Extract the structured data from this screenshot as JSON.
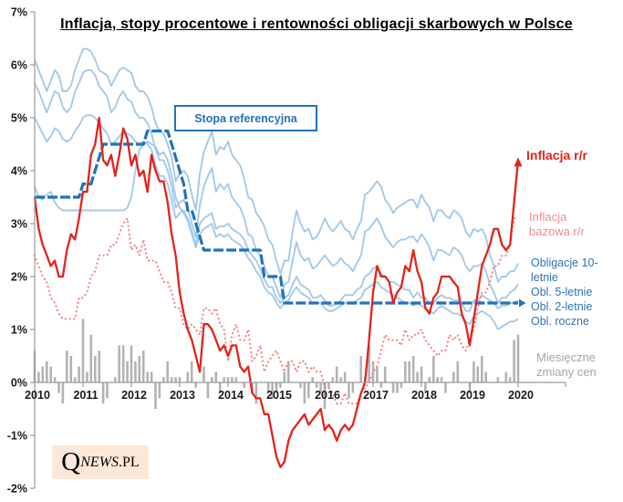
{
  "title": "Inflacja, stopy procentowe i rentowności obligacji skarbowych w Polsce",
  "annotations": {
    "reference_rate_box": "Stopa referencyjna",
    "inflation_label": "Inflacja r/r",
    "core_inflation_label_line1": "Inflacja",
    "core_inflation_label_line2": "bazowa r/r",
    "bond10_label_line1": "Obligacje 10-",
    "bond10_label_line2": "letnie",
    "bond5_label": "Obl. 5-letnie",
    "bond2_label": "Obl. 2-letnie",
    "bond1_label": "Obl. roczne",
    "bars_label_line1": "Miesięczne",
    "bars_label_line2": "zmiany cen"
  },
  "logo": {
    "q": "Q",
    "news": "NEWS",
    "pl": ".PL"
  },
  "colors": {
    "red": "#E2231A",
    "pink": "#F28C8C",
    "dark_blue": "#2272B9",
    "light_blue": "#A6C9E8",
    "blue_label": "#2E74B5",
    "gray_bar": "#B3B3B3",
    "gray_label": "#A6A6A6",
    "axis": "#9B9B9B",
    "tick_text": "#1A1A1A",
    "logo_bg": "#FCE8D9"
  },
  "chart_data": {
    "type": "line+bar",
    "frequency": "monthly",
    "x_start": "2010-01",
    "x_end": "2020-01",
    "ylim": [
      -2,
      7
    ],
    "grid": false,
    "y_tick_labels": [
      "7%",
      "6%",
      "5%",
      "4%",
      "3%",
      "2%",
      "1%",
      "0%",
      "-1%",
      "-2%"
    ],
    "y_tick_values": [
      7,
      6,
      5,
      4,
      3,
      2,
      1,
      0,
      -1,
      -2
    ],
    "x_tick_labels": [
      "2010",
      "2011",
      "2012",
      "2013",
      "2014",
      "2015",
      "2016",
      "2017",
      "2018",
      "2019",
      "2020"
    ],
    "series": {
      "monthly_price_change_bars": {
        "label": "Miesięczne zmiany cen",
        "type": "bar",
        "values": [
          0.6,
          0.2,
          0.3,
          0.4,
          0.3,
          0.1,
          -0.2,
          -0.4,
          0.6,
          0.5,
          0.1,
          0.3,
          1.2,
          0.2,
          0.9,
          0.5,
          0.6,
          -0.4,
          -0.3,
          0.0,
          0.1,
          0.7,
          0.7,
          0.4,
          0.7,
          0.4,
          0.5,
          0.6,
          0.2,
          0.2,
          -0.5,
          -0.3,
          0.1,
          0.4,
          0.1,
          0.1,
          0.1,
          0.0,
          0.2,
          0.4,
          -0.1,
          0.0,
          0.3,
          -0.3,
          0.1,
          0.2,
          -0.2,
          0.1,
          0.1,
          0.1,
          0.1,
          0.0,
          -0.1,
          0.0,
          -0.2,
          -0.4,
          0.0,
          0.0,
          -0.2,
          -0.3,
          -0.2,
          -0.1,
          0.2,
          0.4,
          0.0,
          0.0,
          -0.1,
          -0.4,
          -0.3,
          0.1,
          -0.1,
          -0.2,
          -0.5,
          -0.1,
          0.1,
          0.3,
          0.1,
          0.2,
          -0.3,
          -0.2,
          0.0,
          0.5,
          0.1,
          0.7,
          0.4,
          0.3,
          -0.1,
          0.3,
          0.0,
          -0.2,
          -0.2,
          -0.1,
          0.4,
          0.4,
          0.5,
          0.2,
          0.3,
          -0.2,
          0.1,
          0.5,
          0.1,
          0.1,
          -0.2,
          0.0,
          0.2,
          0.4,
          0.0,
          0.0,
          -0.2,
          0.4,
          0.3,
          0.5,
          0.2,
          0.0,
          0.0,
          0.1,
          0.0,
          0.2,
          0.1,
          0.8,
          0.9
        ]
      },
      "bond_1y": {
        "label": "Obl. roczne",
        "type": "line",
        "values": [
          3.7,
          3.5,
          3.45,
          3.55,
          3.6,
          3.4,
          3.3,
          3.25,
          3.25,
          3.25,
          3.25,
          3.25,
          3.25,
          3.25,
          3.25,
          3.25,
          3.25,
          3.25,
          3.25,
          3.25,
          3.25,
          3.25,
          3.25,
          3.3,
          3.5,
          4.0,
          4.4,
          4.5,
          4.55,
          4.5,
          4.45,
          4.3,
          4.35,
          4.2,
          3.9,
          3.5,
          3.3,
          3.2,
          3.05,
          2.8,
          2.55,
          2.8,
          2.9,
          2.95,
          3.0,
          2.75,
          2.8,
          2.75,
          2.8,
          2.7,
          2.65,
          2.6,
          2.5,
          2.35,
          2.25,
          2.1,
          2.0,
          1.8,
          1.7,
          1.65,
          1.5,
          1.4,
          1.5,
          1.55,
          1.7,
          1.8,
          1.7,
          1.65,
          1.6,
          1.5,
          1.5,
          1.5,
          1.4,
          1.35,
          1.35,
          1.4,
          1.45,
          1.5,
          1.5,
          1.5,
          1.55,
          1.6,
          1.75,
          1.8,
          1.85,
          1.9,
          1.8,
          1.75,
          1.7,
          1.65,
          1.6,
          1.55,
          1.5,
          1.5,
          1.45,
          1.5,
          1.45,
          1.4,
          1.35,
          1.3,
          1.4,
          1.45,
          1.4,
          1.35,
          1.3,
          1.3,
          1.25,
          1.15,
          1.1,
          1.25,
          1.3,
          1.35,
          1.3,
          1.25,
          1.15,
          1.0,
          1.05,
          1.1,
          1.15,
          1.15,
          1.2
        ]
      },
      "bond_2y": {
        "label": "Obl. 2-letnie",
        "type": "line",
        "values": [
          5.0,
          4.85,
          4.7,
          4.55,
          4.65,
          4.8,
          4.75,
          4.6,
          4.55,
          4.6,
          4.75,
          4.85,
          5.0,
          5.05,
          5.05,
          5.0,
          4.9,
          4.8,
          4.7,
          4.5,
          4.55,
          4.65,
          4.75,
          4.7,
          4.65,
          4.55,
          4.5,
          4.55,
          4.5,
          4.4,
          4.1,
          3.9,
          3.9,
          3.75,
          3.45,
          3.1,
          3.2,
          3.25,
          3.1,
          2.85,
          2.6,
          3.0,
          3.1,
          3.15,
          3.2,
          2.9,
          2.95,
          2.95,
          3.0,
          2.9,
          2.85,
          2.8,
          2.7,
          2.5,
          2.4,
          2.3,
          2.15,
          1.95,
          1.8,
          1.8,
          1.6,
          1.5,
          1.6,
          1.65,
          1.85,
          2.0,
          1.85,
          1.8,
          1.75,
          1.6,
          1.6,
          1.65,
          1.55,
          1.45,
          1.45,
          1.5,
          1.55,
          1.65,
          1.65,
          1.65,
          1.75,
          1.8,
          2.0,
          2.05,
          2.15,
          2.2,
          2.05,
          2.0,
          1.9,
          1.9,
          1.85,
          1.8,
          1.75,
          1.75,
          1.6,
          1.7,
          1.6,
          1.6,
          1.5,
          1.5,
          1.6,
          1.65,
          1.6,
          1.6,
          1.55,
          1.55,
          1.5,
          1.35,
          1.35,
          1.55,
          1.55,
          1.65,
          1.6,
          1.55,
          1.5,
          1.4,
          1.45,
          1.45,
          1.5,
          1.5,
          1.55
        ]
      },
      "bond_5y": {
        "label": "Obl. 5-letnie",
        "type": "line",
        "values": [
          5.65,
          5.5,
          5.3,
          5.1,
          5.3,
          5.5,
          5.45,
          5.2,
          5.1,
          5.2,
          5.5,
          5.65,
          5.85,
          5.9,
          5.9,
          5.8,
          5.6,
          5.5,
          5.4,
          5.1,
          5.2,
          5.4,
          5.5,
          5.35,
          5.3,
          5.1,
          5.0,
          5.0,
          4.9,
          4.7,
          4.4,
          4.2,
          4.2,
          4.0,
          3.7,
          3.3,
          3.4,
          3.45,
          3.3,
          3.0,
          2.75,
          3.35,
          3.7,
          3.9,
          4.05,
          3.6,
          3.75,
          3.65,
          3.75,
          3.5,
          3.4,
          3.3,
          3.1,
          2.8,
          2.75,
          2.5,
          2.4,
          2.2,
          2.0,
          2.0,
          1.8,
          1.6,
          1.85,
          1.9,
          2.3,
          2.65,
          2.4,
          2.3,
          2.35,
          2.15,
          2.2,
          2.3,
          2.4,
          2.3,
          2.2,
          2.25,
          2.35,
          2.25,
          2.2,
          2.1,
          2.25,
          2.4,
          2.85,
          2.9,
          3.0,
          3.1,
          2.95,
          2.75,
          2.65,
          2.55,
          2.65,
          2.7,
          2.7,
          2.75,
          2.75,
          2.65,
          2.8,
          2.7,
          2.55,
          2.3,
          2.5,
          2.5,
          2.45,
          2.4,
          2.55,
          2.5,
          2.4,
          2.2,
          2.1,
          2.2,
          2.2,
          2.25,
          2.1,
          1.85,
          1.7,
          1.5,
          1.6,
          1.6,
          1.7,
          1.75,
          1.85
        ]
      },
      "bond_10y": {
        "label": "Obligacje 10-letnie",
        "type": "line",
        "values": [
          6.1,
          5.9,
          5.7,
          5.5,
          5.7,
          5.9,
          5.8,
          5.5,
          5.5,
          5.6,
          5.9,
          6.1,
          6.3,
          6.3,
          6.25,
          6.1,
          5.9,
          5.85,
          5.8,
          5.6,
          5.75,
          5.9,
          5.95,
          5.9,
          5.85,
          5.6,
          5.5,
          5.5,
          5.4,
          5.2,
          4.9,
          4.75,
          4.7,
          4.5,
          4.25,
          3.8,
          3.95,
          4.0,
          3.9,
          3.55,
          3.25,
          3.95,
          4.35,
          4.55,
          4.75,
          4.3,
          4.45,
          4.4,
          4.55,
          4.3,
          4.2,
          4.1,
          3.85,
          3.5,
          3.45,
          3.2,
          3.1,
          2.95,
          2.7,
          2.6,
          2.3,
          2.05,
          2.3,
          2.3,
          2.85,
          3.25,
          3.0,
          2.85,
          2.9,
          2.7,
          2.75,
          2.9,
          3.1,
          2.95,
          2.85,
          2.95,
          3.05,
          2.9,
          2.85,
          2.7,
          2.9,
          3.05,
          3.55,
          3.6,
          3.7,
          3.8,
          3.7,
          3.45,
          3.35,
          3.2,
          3.3,
          3.35,
          3.4,
          3.45,
          3.45,
          3.3,
          3.55,
          3.4,
          3.3,
          3.05,
          3.25,
          3.25,
          3.15,
          3.1,
          3.25,
          3.2,
          3.1,
          2.85,
          2.75,
          2.9,
          2.85,
          2.9,
          2.75,
          2.4,
          2.2,
          1.9,
          2.0,
          2.0,
          2.1,
          2.1,
          2.25
        ]
      },
      "core_cpi_yoy": {
        "label": "Inflacja bazowa r/r",
        "type": "dotted-line",
        "values": [
          2.4,
          2.2,
          2.0,
          1.9,
          1.6,
          1.5,
          1.3,
          1.2,
          1.2,
          1.2,
          1.2,
          1.6,
          1.6,
          1.7,
          2.0,
          2.1,
          2.4,
          2.4,
          2.4,
          2.6,
          2.6,
          2.8,
          3.0,
          3.1,
          2.5,
          2.6,
          2.4,
          2.7,
          2.3,
          2.3,
          2.3,
          2.1,
          1.9,
          1.9,
          1.7,
          1.4,
          1.4,
          1.1,
          1.0,
          1.1,
          1.0,
          0.9,
          1.4,
          1.4,
          1.3,
          1.4,
          1.1,
          1.0,
          0.4,
          0.9,
          1.1,
          0.8,
          0.8,
          1.0,
          0.4,
          0.5,
          0.7,
          0.2,
          0.4,
          0.5,
          0.6,
          0.4,
          0.2,
          0.4,
          0.4,
          0.2,
          0.4,
          0.4,
          0.2,
          0.3,
          0.2,
          0.2,
          -0.1,
          -0.1,
          -0.2,
          -0.4,
          -0.4,
          -0.2,
          -0.4,
          -0.4,
          -0.4,
          -0.2,
          -0.1,
          0.0,
          0.2,
          0.3,
          0.6,
          0.9,
          0.8,
          0.8,
          0.8,
          0.7,
          1.0,
          0.8,
          0.9,
          0.9,
          1.0,
          0.8,
          0.7,
          0.6,
          0.5,
          0.6,
          0.6,
          0.9,
          0.8,
          0.9,
          0.7,
          0.6,
          0.8,
          1.0,
          1.4,
          1.7,
          1.7,
          1.9,
          2.2,
          2.2,
          2.4,
          2.4,
          2.6,
          3.1,
          3.1
        ]
      },
      "reference_rate": {
        "label": "Stopa referencyjna",
        "type": "step-dashed",
        "values": [
          3.5,
          3.5,
          3.5,
          3.5,
          3.5,
          3.5,
          3.5,
          3.5,
          3.5,
          3.5,
          3.5,
          3.5,
          3.75,
          3.75,
          3.75,
          4.0,
          4.25,
          4.5,
          4.5,
          4.5,
          4.5,
          4.5,
          4.5,
          4.5,
          4.5,
          4.5,
          4.5,
          4.5,
          4.75,
          4.75,
          4.75,
          4.75,
          4.75,
          4.75,
          4.5,
          4.25,
          4.0,
          3.75,
          3.25,
          3.25,
          3.0,
          2.75,
          2.5,
          2.5,
          2.5,
          2.5,
          2.5,
          2.5,
          2.5,
          2.5,
          2.5,
          2.5,
          2.5,
          2.5,
          2.5,
          2.5,
          2.5,
          2.0,
          2.0,
          2.0,
          2.0,
          2.0,
          1.5,
          1.5,
          1.5,
          1.5,
          1.5,
          1.5,
          1.5,
          1.5,
          1.5,
          1.5,
          1.5,
          1.5,
          1.5,
          1.5,
          1.5,
          1.5,
          1.5,
          1.5,
          1.5,
          1.5,
          1.5,
          1.5,
          1.5,
          1.5,
          1.5,
          1.5,
          1.5,
          1.5,
          1.5,
          1.5,
          1.5,
          1.5,
          1.5,
          1.5,
          1.5,
          1.5,
          1.5,
          1.5,
          1.5,
          1.5,
          1.5,
          1.5,
          1.5,
          1.5,
          1.5,
          1.5,
          1.5,
          1.5,
          1.5,
          1.5,
          1.5,
          1.5,
          1.5,
          1.5,
          1.5,
          1.5,
          1.5,
          1.5,
          1.5
        ]
      },
      "cpi_yoy": {
        "label": "Inflacja r/r",
        "type": "line",
        "values": [
          3.5,
          2.9,
          2.6,
          2.4,
          2.2,
          2.3,
          2.0,
          2.0,
          2.5,
          2.8,
          2.7,
          3.1,
          3.6,
          3.6,
          4.3,
          4.5,
          5.0,
          4.2,
          4.1,
          4.3,
          3.9,
          4.3,
          4.8,
          4.6,
          4.1,
          4.3,
          3.9,
          4.0,
          3.6,
          4.3,
          4.0,
          3.8,
          3.8,
          3.4,
          2.8,
          2.4,
          1.7,
          1.3,
          1.0,
          0.8,
          0.5,
          0.2,
          1.1,
          1.1,
          1.0,
          0.8,
          0.6,
          0.7,
          0.5,
          0.7,
          0.7,
          0.3,
          0.2,
          0.3,
          -0.2,
          -0.3,
          -0.3,
          -0.6,
          -0.6,
          -1.0,
          -1.4,
          -1.6,
          -1.5,
          -1.1,
          -0.9,
          -0.8,
          -0.7,
          -0.6,
          -0.8,
          -0.7,
          -0.6,
          -0.5,
          -0.9,
          -0.8,
          -0.9,
          -1.1,
          -0.9,
          -0.8,
          -0.9,
          -0.8,
          -0.5,
          -0.2,
          0.0,
          0.8,
          1.7,
          2.2,
          2.0,
          2.0,
          1.9,
          1.5,
          1.7,
          1.8,
          2.2,
          2.1,
          2.5,
          2.1,
          1.9,
          1.4,
          1.3,
          1.6,
          1.7,
          2.0,
          2.0,
          2.0,
          1.9,
          1.8,
          1.3,
          1.1,
          0.7,
          1.2,
          1.7,
          2.2,
          2.4,
          2.6,
          2.9,
          2.9,
          2.6,
          2.5,
          2.6,
          3.4,
          4.2
        ]
      }
    }
  }
}
